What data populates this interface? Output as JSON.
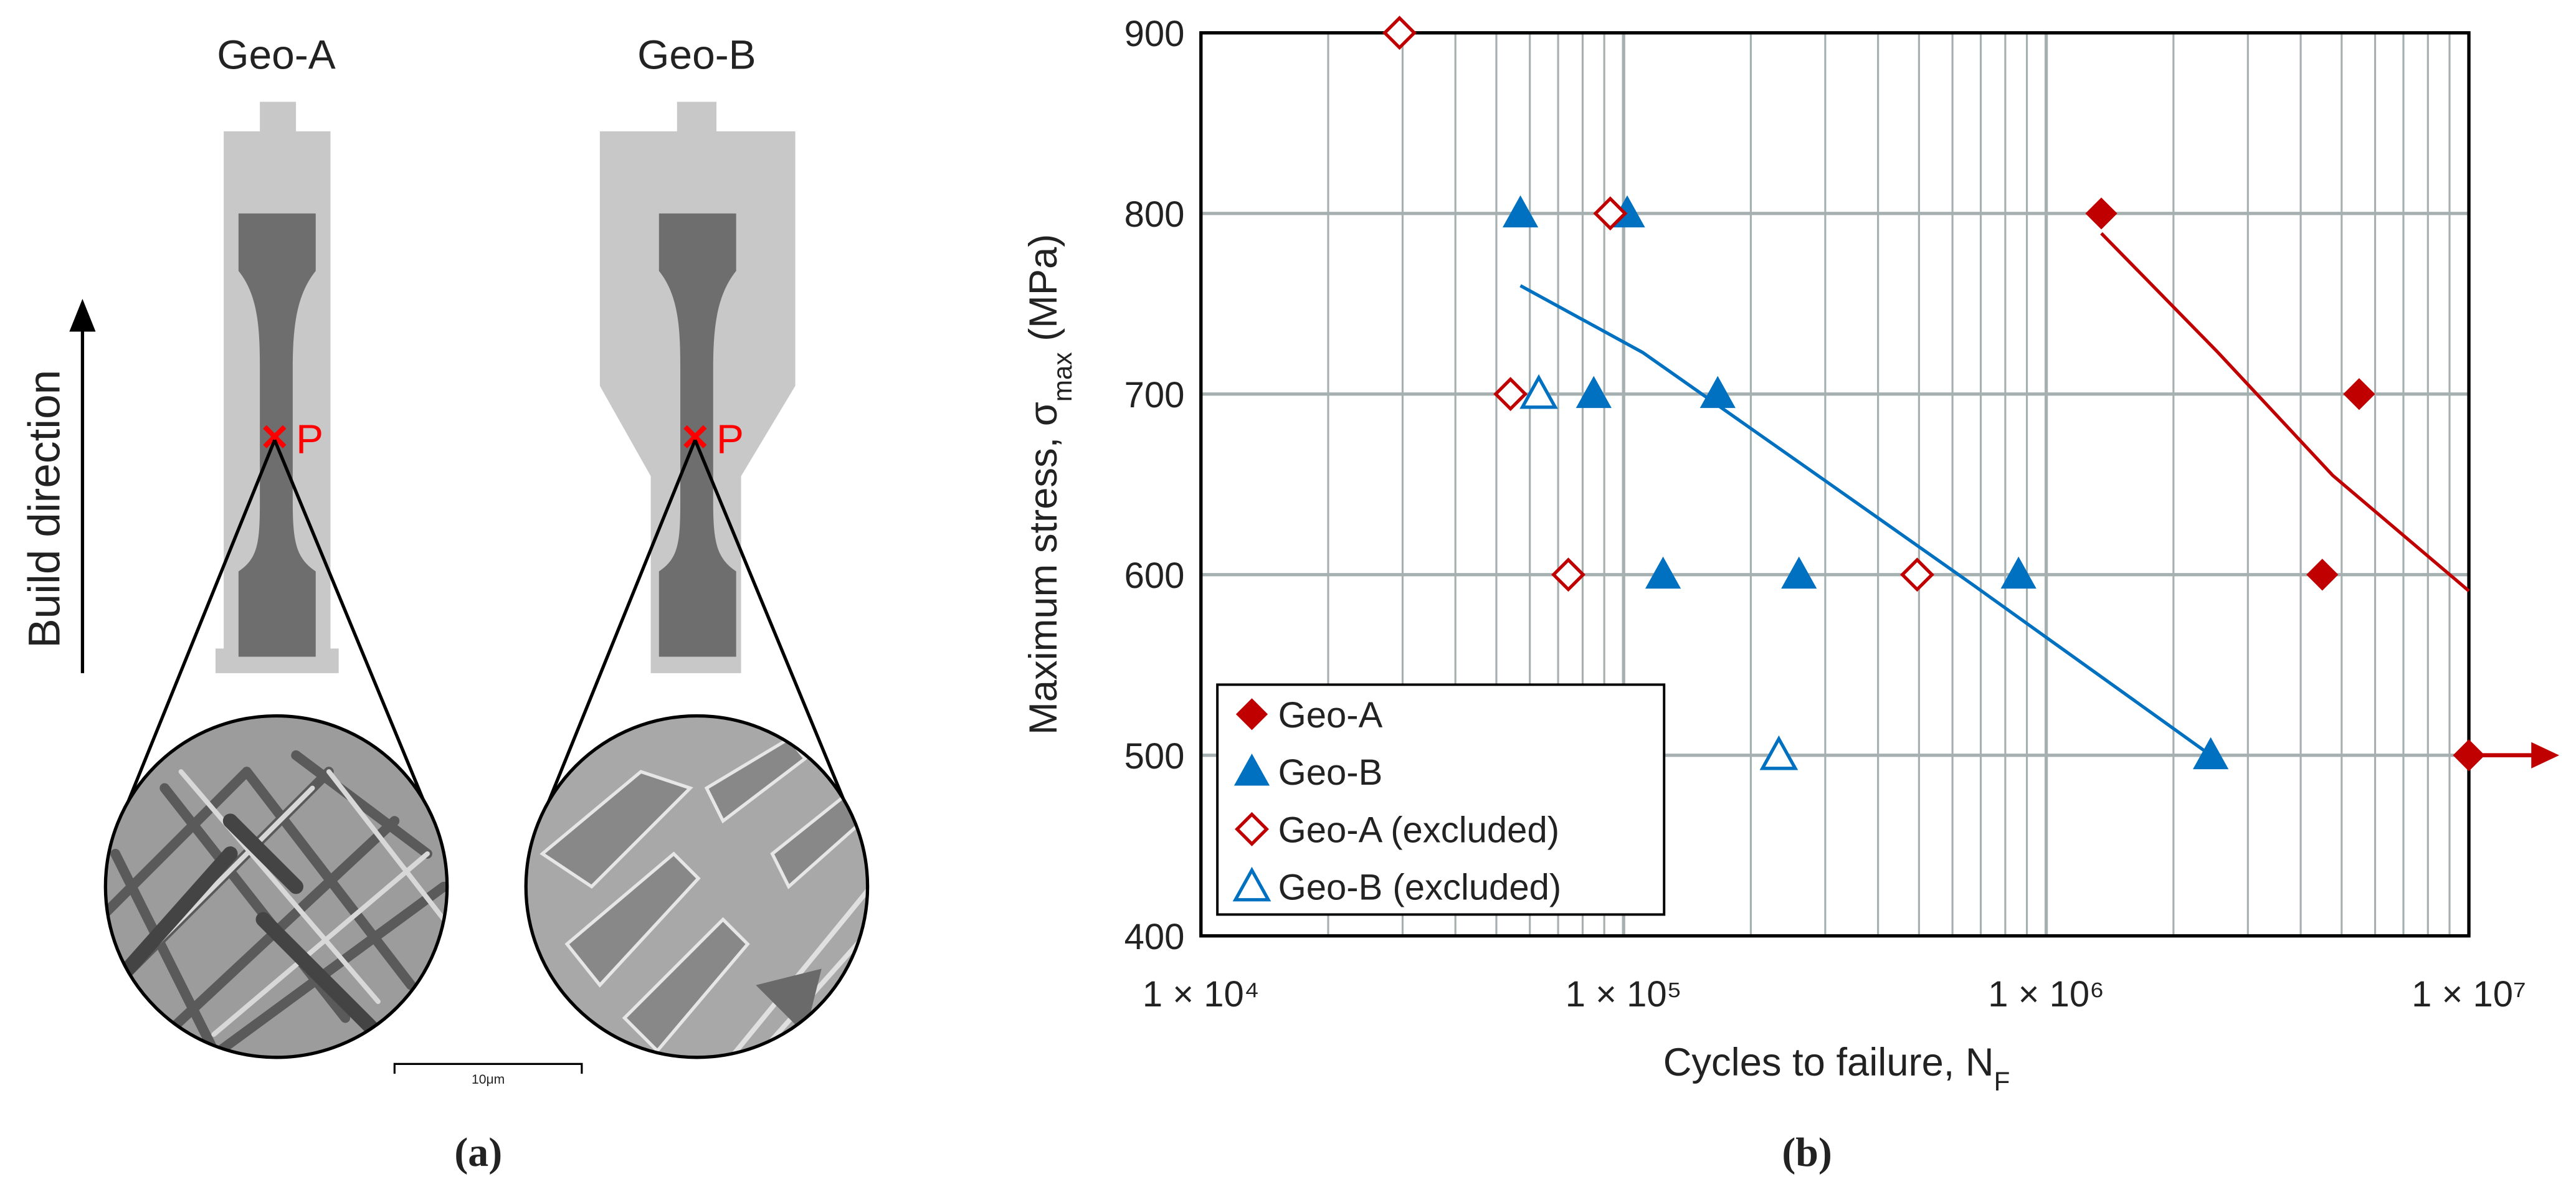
{
  "panel_a": {
    "label": "(a)",
    "geo_a": "Geo-A",
    "geo_b": "Geo-B",
    "build_direction": "Build direction",
    "point_a": "P",
    "point_b": "P",
    "scale_bar": "10μm"
  },
  "chart_data": {
    "type": "scatter",
    "label": "(b)",
    "xlabel": [
      "Cycles to failure, N",
      "F"
    ],
    "ylabel": [
      "Maximum stress, σ",
      "max",
      " (MPa)"
    ],
    "xscale": "log",
    "xlim": [
      10000,
      10000000
    ],
    "xticks": [
      {
        "value": 10000,
        "label": "1 × 10⁴"
      },
      {
        "value": 100000,
        "label": "1 × 10⁵"
      },
      {
        "value": 1000000,
        "label": "1 × 10⁶"
      },
      {
        "value": 10000000,
        "label": "1 × 10⁷"
      }
    ],
    "ylim": [
      400,
      900
    ],
    "yticks": [
      400,
      500,
      600,
      700,
      800,
      900
    ],
    "grid": true,
    "minor_grid": true,
    "legend": "lower left",
    "series": [
      {
        "name": "Geo-A",
        "color": "#c00000",
        "marker": "diamond",
        "filled": true,
        "x": [
          1350000,
          5500000,
          4500000,
          10000000
        ],
        "values": [
          800,
          700,
          600,
          500
        ]
      },
      {
        "name": "Geo-B",
        "color": "#0070c0",
        "marker": "triangle",
        "filled": true,
        "x": [
          57000,
          102000,
          85000,
          167000,
          124000,
          260000,
          860000,
          2450000
        ],
        "values": [
          800,
          800,
          700,
          700,
          600,
          600,
          600,
          500
        ]
      },
      {
        "name": "Geo-A (excluded)",
        "color": "#c00000",
        "marker": "diamond",
        "filled": false,
        "x": [
          29500,
          93000,
          54000,
          74000,
          495000
        ],
        "values": [
          900,
          800,
          700,
          600,
          600
        ]
      },
      {
        "name": "Geo-B (excluded)",
        "color": "#0070c0",
        "marker": "triangle",
        "filled": false,
        "x": [
          63000,
          233000
        ],
        "values": [
          700,
          500
        ]
      }
    ],
    "fits": [
      {
        "color": "#0070c0",
        "x": [
          57000,
          111000,
          272000,
          665000,
          2450000
        ],
        "values": [
          760,
          723,
          659,
          595,
          500
        ]
      },
      {
        "color": "#c00000",
        "x": [
          1350000,
          2550000,
          4760000,
          10000000
        ],
        "values": [
          789,
          723,
          655,
          591
        ]
      }
    ]
  }
}
